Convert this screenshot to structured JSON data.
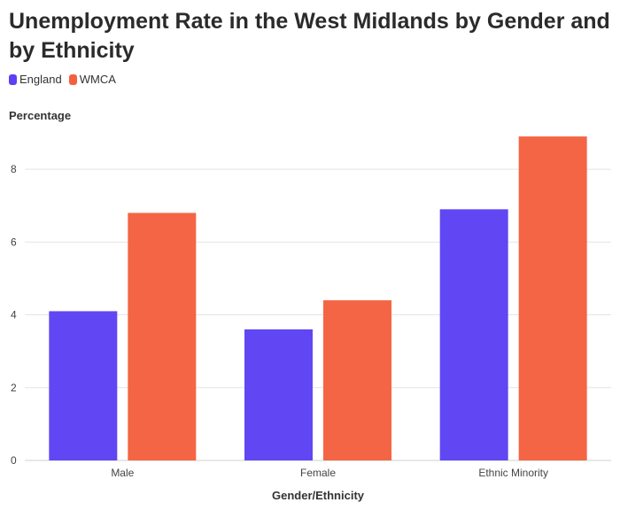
{
  "chart_data": {
    "type": "bar",
    "title": "Unemployment Rate in the West Midlands by Gender and by Ethnicity",
    "xlabel": "Gender/Ethnicity",
    "ylabel": "Percentage",
    "categories": [
      "Male",
      "Female",
      "Ethnic Minority"
    ],
    "series": [
      {
        "name": "England",
        "values": [
          4.1,
          3.6,
          6.9
        ],
        "color": "#5b41f3"
      },
      {
        "name": "WMCA",
        "values": [
          6.8,
          4.4,
          8.9
        ],
        "color": "#f4603f"
      }
    ],
    "ylim": [
      0,
      9
    ],
    "yticks": [
      0,
      2,
      4,
      6,
      8
    ],
    "grid": true,
    "legend_position": "top-left"
  }
}
